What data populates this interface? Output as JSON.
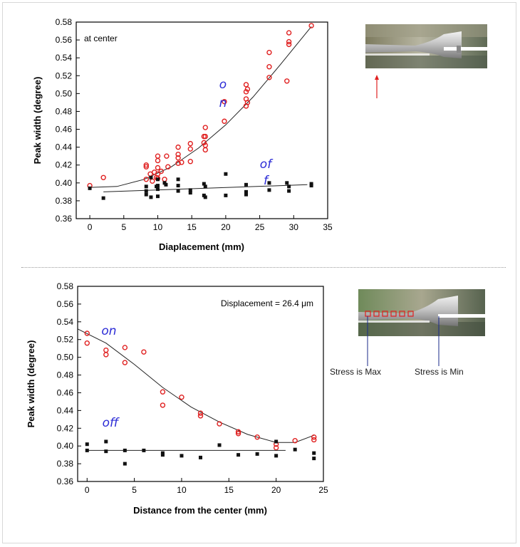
{
  "chart_data": [
    {
      "type": "scatter",
      "xlabel": "Diaplacement (mm)",
      "ylabel": "Peak width (degree)",
      "annotation": "at center",
      "xlim": [
        -2,
        35
      ],
      "ylim": [
        0.36,
        0.58
      ],
      "xticks": [
        0,
        5,
        10,
        15,
        20,
        25,
        30,
        35
      ],
      "yticks": [
        0.36,
        0.38,
        0.4,
        0.42,
        0.44,
        0.46,
        0.48,
        0.5,
        0.52,
        0.54,
        0.56,
        0.58
      ],
      "xtick_labels": [
        "0",
        "5",
        "10",
        "15",
        "20",
        "25",
        "30",
        "35"
      ],
      "ytick_labels": [
        "0.36",
        "0.38",
        "0.40",
        "0.42",
        "0.44",
        "0.46",
        "0.48",
        "0.50",
        "0.52",
        "0.54",
        "0.56",
        "0.58"
      ],
      "series": [
        {
          "name": "on",
          "label_lines": [
            "o",
            "n"
          ],
          "marker": "open-circle",
          "color": "#e02020",
          "points": [
            [
              0,
              0.397
            ],
            [
              2,
              0.406
            ],
            [
              8.3,
              0.42
            ],
            [
              8.3,
              0.418
            ],
            [
              8.3,
              0.404
            ],
            [
              8.9,
              0.41
            ],
            [
              9.2,
              0.402
            ],
            [
              9.5,
              0.412
            ],
            [
              9.8,
              0.406
            ],
            [
              10,
              0.43
            ],
            [
              10,
              0.425
            ],
            [
              10,
              0.417
            ],
            [
              10,
              0.41
            ],
            [
              10,
              0.405
            ],
            [
              10.5,
              0.413
            ],
            [
              11,
              0.404
            ],
            [
              11.3,
              0.43
            ],
            [
              11.5,
              0.418
            ],
            [
              13,
              0.44
            ],
            [
              13,
              0.432
            ],
            [
              13,
              0.428
            ],
            [
              13,
              0.422
            ],
            [
              13.5,
              0.423
            ],
            [
              14.8,
              0.444
            ],
            [
              14.8,
              0.438
            ],
            [
              14.8,
              0.424
            ],
            [
              16.8,
              0.452
            ],
            [
              16.8,
              0.445
            ],
            [
              17,
              0.462
            ],
            [
              17,
              0.452
            ],
            [
              17,
              0.442
            ],
            [
              17,
              0.437
            ],
            [
              19.8,
              0.491
            ],
            [
              19.8,
              0.469
            ],
            [
              23,
              0.51
            ],
            [
              23,
              0.502
            ],
            [
              23,
              0.494
            ],
            [
              23,
              0.486
            ],
            [
              23.2,
              0.505
            ],
            [
              23.2,
              0.49
            ],
            [
              26.4,
              0.546
            ],
            [
              26.4,
              0.53
            ],
            [
              26.4,
              0.518
            ],
            [
              29,
              0.514
            ],
            [
              29.3,
              0.568
            ],
            [
              29.3,
              0.558
            ],
            [
              29.3,
              0.555
            ],
            [
              32.6,
              0.576
            ]
          ],
          "fit": [
            [
              0,
              0.395
            ],
            [
              4,
              0.396
            ],
            [
              8,
              0.404
            ],
            [
              12,
              0.418
            ],
            [
              16,
              0.439
            ],
            [
              20,
              0.465
            ],
            [
              24,
              0.496
            ],
            [
              28,
              0.532
            ],
            [
              32.6,
              0.575
            ]
          ]
        },
        {
          "name": "off",
          "label_lines": [
            "of",
            "f"
          ],
          "marker": "filled-square",
          "color": "#111111",
          "points": [
            [
              0,
              0.394
            ],
            [
              2,
              0.383
            ],
            [
              8.3,
              0.396
            ],
            [
              8.3,
              0.391
            ],
            [
              8.3,
              0.387
            ],
            [
              9,
              0.406
            ],
            [
              9,
              0.384
            ],
            [
              9.8,
              0.396
            ],
            [
              10,
              0.404
            ],
            [
              10,
              0.397
            ],
            [
              10,
              0.393
            ],
            [
              10,
              0.385
            ],
            [
              11,
              0.4
            ],
            [
              11.2,
              0.398
            ],
            [
              13,
              0.404
            ],
            [
              13,
              0.397
            ],
            [
              13,
              0.391
            ],
            [
              14.8,
              0.392
            ],
            [
              14.8,
              0.389
            ],
            [
              16.8,
              0.399
            ],
            [
              16.8,
              0.386
            ],
            [
              17,
              0.396
            ],
            [
              17,
              0.384
            ],
            [
              20,
              0.41
            ],
            [
              20,
              0.386
            ],
            [
              23,
              0.398
            ],
            [
              23,
              0.39
            ],
            [
              23,
              0.387
            ],
            [
              26.4,
              0.4
            ],
            [
              26.4,
              0.392
            ],
            [
              29,
              0.4
            ],
            [
              29.3,
              0.396
            ],
            [
              29.3,
              0.391
            ],
            [
              32.6,
              0.399
            ],
            [
              32.6,
              0.397
            ]
          ],
          "fit": [
            [
              2,
              0.39
            ],
            [
              32,
              0.398
            ]
          ]
        }
      ],
      "grid": false
    },
    {
      "type": "scatter",
      "xlabel": "Distance from the center (mm)",
      "ylabel": "Peak width (degree)",
      "annotation": "Displacement = 26.4 μm",
      "xlim": [
        -1,
        25
      ],
      "ylim": [
        0.36,
        0.58
      ],
      "xticks": [
        0,
        5,
        10,
        15,
        20,
        25
      ],
      "yticks": [
        0.36,
        0.38,
        0.4,
        0.42,
        0.44,
        0.46,
        0.48,
        0.5,
        0.52,
        0.54,
        0.56,
        0.58
      ],
      "xtick_labels": [
        "0",
        "5",
        "10",
        "15",
        "20",
        "25"
      ],
      "ytick_labels": [
        "0.36",
        "0.38",
        "0.40",
        "0.42",
        "0.44",
        "0.46",
        "0.48",
        "0.50",
        "0.52",
        "0.54",
        "0.56",
        "0.58"
      ],
      "series": [
        {
          "name": "on",
          "label_lines": [
            "on"
          ],
          "marker": "open-circle",
          "color": "#e02020",
          "points": [
            [
              0,
              0.527
            ],
            [
              0,
              0.516
            ],
            [
              2,
              0.508
            ],
            [
              2,
              0.503
            ],
            [
              4,
              0.511
            ],
            [
              4,
              0.494
            ],
            [
              6,
              0.506
            ],
            [
              8,
              0.461
            ],
            [
              8,
              0.446
            ],
            [
              10,
              0.455
            ],
            [
              12,
              0.437
            ],
            [
              12,
              0.434
            ],
            [
              14,
              0.425
            ],
            [
              16,
              0.416
            ],
            [
              16,
              0.414
            ],
            [
              18,
              0.41
            ],
            [
              20,
              0.402
            ],
            [
              20,
              0.398
            ],
            [
              22,
              0.406
            ],
            [
              24,
              0.41
            ],
            [
              24,
              0.407
            ]
          ],
          "fit": [
            [
              -1,
              0.532
            ],
            [
              2,
              0.516
            ],
            [
              5,
              0.492
            ],
            [
              8,
              0.466
            ],
            [
              11,
              0.444
            ],
            [
              14,
              0.427
            ],
            [
              17,
              0.413
            ],
            [
              20,
              0.404
            ],
            [
              22,
              0.404
            ],
            [
              24,
              0.412
            ]
          ]
        },
        {
          "name": "off",
          "label_lines": [
            "off"
          ],
          "marker": "filled-square",
          "color": "#111111",
          "points": [
            [
              0,
              0.402
            ],
            [
              0,
              0.395
            ],
            [
              2,
              0.405
            ],
            [
              2,
              0.394
            ],
            [
              4,
              0.395
            ],
            [
              4,
              0.38
            ],
            [
              6,
              0.395
            ],
            [
              8,
              0.392
            ],
            [
              8,
              0.39
            ],
            [
              10,
              0.389
            ],
            [
              12,
              0.387
            ],
            [
              14,
              0.401
            ],
            [
              16,
              0.39
            ],
            [
              18,
              0.391
            ],
            [
              20,
              0.405
            ],
            [
              20,
              0.389
            ],
            [
              22,
              0.396
            ],
            [
              24,
              0.392
            ],
            [
              24,
              0.386
            ]
          ],
          "fit": [
            [
              0,
              0.395
            ],
            [
              21,
              0.395
            ]
          ]
        }
      ],
      "grid": false
    }
  ],
  "photos": {
    "top": {
      "description_color": "#8a8e7a",
      "arrow_color": "#e02020"
    },
    "bottom": {
      "marker_color": "#e02020",
      "line_color": "#1a2a8a",
      "stress_max_label": "Stress is Max",
      "stress_min_label": "Stress is Min"
    }
  }
}
